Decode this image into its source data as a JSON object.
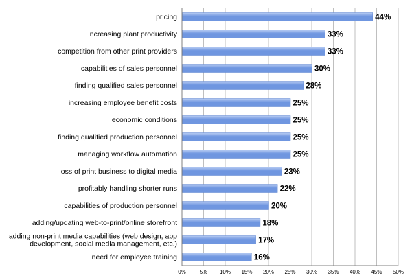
{
  "chart_data": {
    "type": "bar",
    "orientation": "horizontal",
    "title": "",
    "xlabel": "",
    "ylabel": "",
    "xlim": [
      0,
      50
    ],
    "grid": true,
    "legend": "none",
    "bar_color": "#6f96e0",
    "bar_color_light": "#b9cdf3",
    "categories": [
      "pricing",
      "increasing plant productivity",
      "competition from other print providers",
      "capabilities of sales personnel",
      "finding qualified sales personnel",
      "increasing employee benefit costs",
      "economic conditions",
      "finding qualified production personnel",
      "managing workflow automation",
      "loss of print business to digital media",
      "profitably handling shorter runs",
      "capabilities of production personnel",
      "adding/updating web-to-print/online storefront",
      "adding non-print media capabilities (web design, app development, social media management, etc.)",
      "need for employee training"
    ],
    "category_lines": [
      [
        "pricing"
      ],
      [
        "increasing plant productivity"
      ],
      [
        "competition from other print providers"
      ],
      [
        "capabilities of sales personnel"
      ],
      [
        "finding qualified sales personnel"
      ],
      [
        "increasing employee benefit costs"
      ],
      [
        "economic conditions"
      ],
      [
        "finding qualified production personnel"
      ],
      [
        "managing workflow automation"
      ],
      [
        "loss of print business to digital media"
      ],
      [
        "profitably handling shorter runs"
      ],
      [
        "capabilities of production personnel"
      ],
      [
        "adding/updating web-to-print/online storefront"
      ],
      [
        "adding non-print media capabilities (web design, app",
        "development, social media management, etc.)"
      ],
      [
        "need for employee training"
      ]
    ],
    "values": [
      44,
      33,
      33,
      30,
      28,
      25,
      25,
      25,
      25,
      23,
      22,
      20,
      18,
      17,
      16
    ],
    "value_labels": [
      "44%",
      "33%",
      "33%",
      "30%",
      "28%",
      "25%",
      "25%",
      "25%",
      "25%",
      "23%",
      "22%",
      "20%",
      "18%",
      "17%",
      "16%"
    ],
    "x_ticks": [
      0,
      5,
      10,
      15,
      20,
      25,
      30,
      35,
      40,
      45,
      50
    ],
    "x_tick_labels": [
      "0%",
      "5%",
      "10%",
      "15%",
      "20%",
      "25%",
      "30%",
      "35%",
      "40%",
      "45%",
      "50%"
    ]
  }
}
